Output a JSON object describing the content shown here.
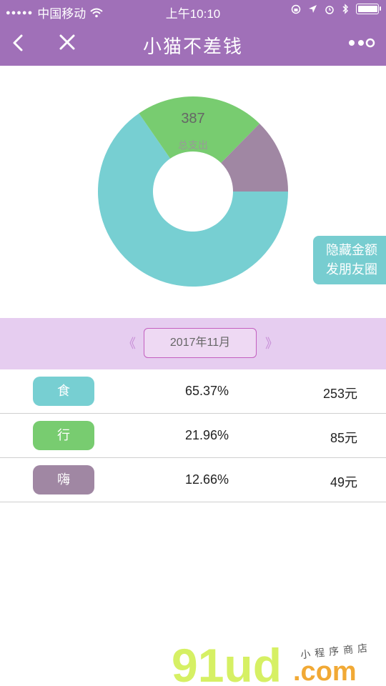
{
  "status_bar": {
    "carrier": "中国移动",
    "time": "上午10:10"
  },
  "nav": {
    "title": "小猫不差钱"
  },
  "summary": {
    "total": "387",
    "total_label": "总支出"
  },
  "share_button": {
    "line1": "隐藏金额",
    "line2": "发朋友圈"
  },
  "month_selector": {
    "prev_label": "《",
    "current": "2017年11月",
    "next_label": "》"
  },
  "categories": [
    {
      "name": "食",
      "percent": "65.37%",
      "amount": "253元",
      "color": "#77cfd2"
    },
    {
      "name": "行",
      "percent": "21.96%",
      "amount": "85元",
      "color": "#78cc70"
    },
    {
      "name": "嗨",
      "percent": "12.66%",
      "amount": "49元",
      "color": "#a087a3"
    }
  ],
  "chart_data": {
    "type": "pie",
    "categories": [
      "食",
      "行",
      "嗨"
    ],
    "values": [
      253,
      85,
      49
    ],
    "colors": [
      "#77cfd2",
      "#78cc70",
      "#a087a3"
    ]
  },
  "watermark": {
    "brand": "91ud",
    "domain": ".com",
    "tagline": "小程序商店"
  },
  "colors": {
    "header": "#a070b8",
    "month_bar": "#e6cdf0",
    "accent": "#c35fc0"
  }
}
